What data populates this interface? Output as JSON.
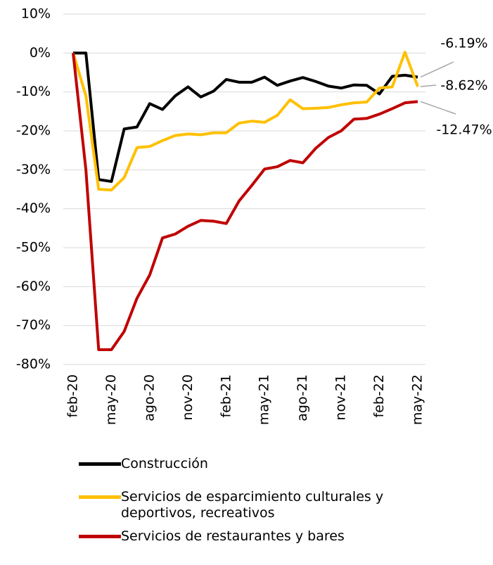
{
  "chart_data": {
    "type": "line",
    "categories": [
      "feb-20",
      null,
      null,
      "may-20",
      null,
      null,
      "ago-20",
      null,
      null,
      "nov-20",
      null,
      null,
      "feb-21",
      null,
      null,
      "may-21",
      null,
      null,
      "ago-21",
      null,
      null,
      "nov-21",
      null,
      null,
      "feb-22",
      null,
      null,
      "may-22"
    ],
    "series": [
      {
        "name": "Construcción",
        "color": "#000000",
        "values": [
          0,
          0,
          -32.5,
          -33,
          -19.5,
          -19,
          -13,
          -14.5,
          -11,
          -8.7,
          -11.3,
          -9.8,
          -6.8,
          -7.5,
          -7.5,
          -6.2,
          -8.3,
          -7.2,
          -6.3,
          -7.3,
          -8.5,
          -9,
          -8.2,
          -8.3,
          -10.5,
          -6,
          -5.7,
          -6.19
        ],
        "value_labels": [
          null,
          null,
          null,
          null,
          null,
          null,
          null,
          null,
          null,
          null,
          null,
          null,
          null,
          null,
          null,
          null,
          null,
          null,
          null,
          null,
          null,
          null,
          null,
          null,
          null,
          null,
          null,
          "-6.19%"
        ]
      },
      {
        "name": "Servicios de esparcimiento culturales y deportivos, recreativos",
        "color": "#ffc000",
        "values": [
          0,
          -11,
          -35,
          -35.2,
          -32,
          -24.3,
          -24,
          -22.5,
          -21.2,
          -20.8,
          -21,
          -20.5,
          -20.5,
          -18,
          -17.5,
          -17.8,
          -16,
          -12,
          -14.3,
          -14.2,
          -14,
          -13.3,
          -12.8,
          -12.6,
          -9,
          -8.7,
          0.2,
          -8.62
        ],
        "value_labels": [
          null,
          null,
          null,
          null,
          null,
          null,
          null,
          null,
          null,
          null,
          null,
          null,
          null,
          null,
          null,
          null,
          null,
          null,
          null,
          null,
          null,
          null,
          null,
          null,
          null,
          null,
          null,
          "-8.62%"
        ]
      },
      {
        "name": "Servicios de restaurantes y bares",
        "color": "#c00000",
        "values": [
          0,
          -30,
          -76.2,
          -76.2,
          -71.5,
          -63,
          -57,
          -47.5,
          -46.5,
          -44.5,
          -43,
          -43.2,
          -43.8,
          -38,
          -34,
          -29.8,
          -29.2,
          -27.6,
          -28.2,
          -24.5,
          -21.7,
          -20,
          -17,
          -16.8,
          -15.7,
          -14.3,
          -12.8,
          -12.47
        ],
        "value_labels": [
          null,
          null,
          null,
          null,
          null,
          null,
          null,
          null,
          null,
          null,
          null,
          null,
          null,
          null,
          null,
          null,
          null,
          null,
          null,
          null,
          null,
          null,
          null,
          null,
          null,
          null,
          null,
          "-12.47%"
        ]
      }
    ],
    "ylim": [
      -80,
      10
    ],
    "yticks": [
      {
        "value": -80,
        "label": "-80%"
      },
      {
        "value": -70,
        "label": "-70%"
      },
      {
        "value": -60,
        "label": "-60%"
      },
      {
        "value": -50,
        "label": "-50%"
      },
      {
        "value": -40,
        "label": "-40%"
      },
      {
        "value": -30,
        "label": "-30%"
      },
      {
        "value": -20,
        "label": "-20%"
      },
      {
        "value": -10,
        "label": "-10%"
      },
      {
        "value": 0,
        "label": "0%"
      },
      {
        "value": 10,
        "label": "10%"
      }
    ],
    "grid": true,
    "legend": "bottom"
  }
}
